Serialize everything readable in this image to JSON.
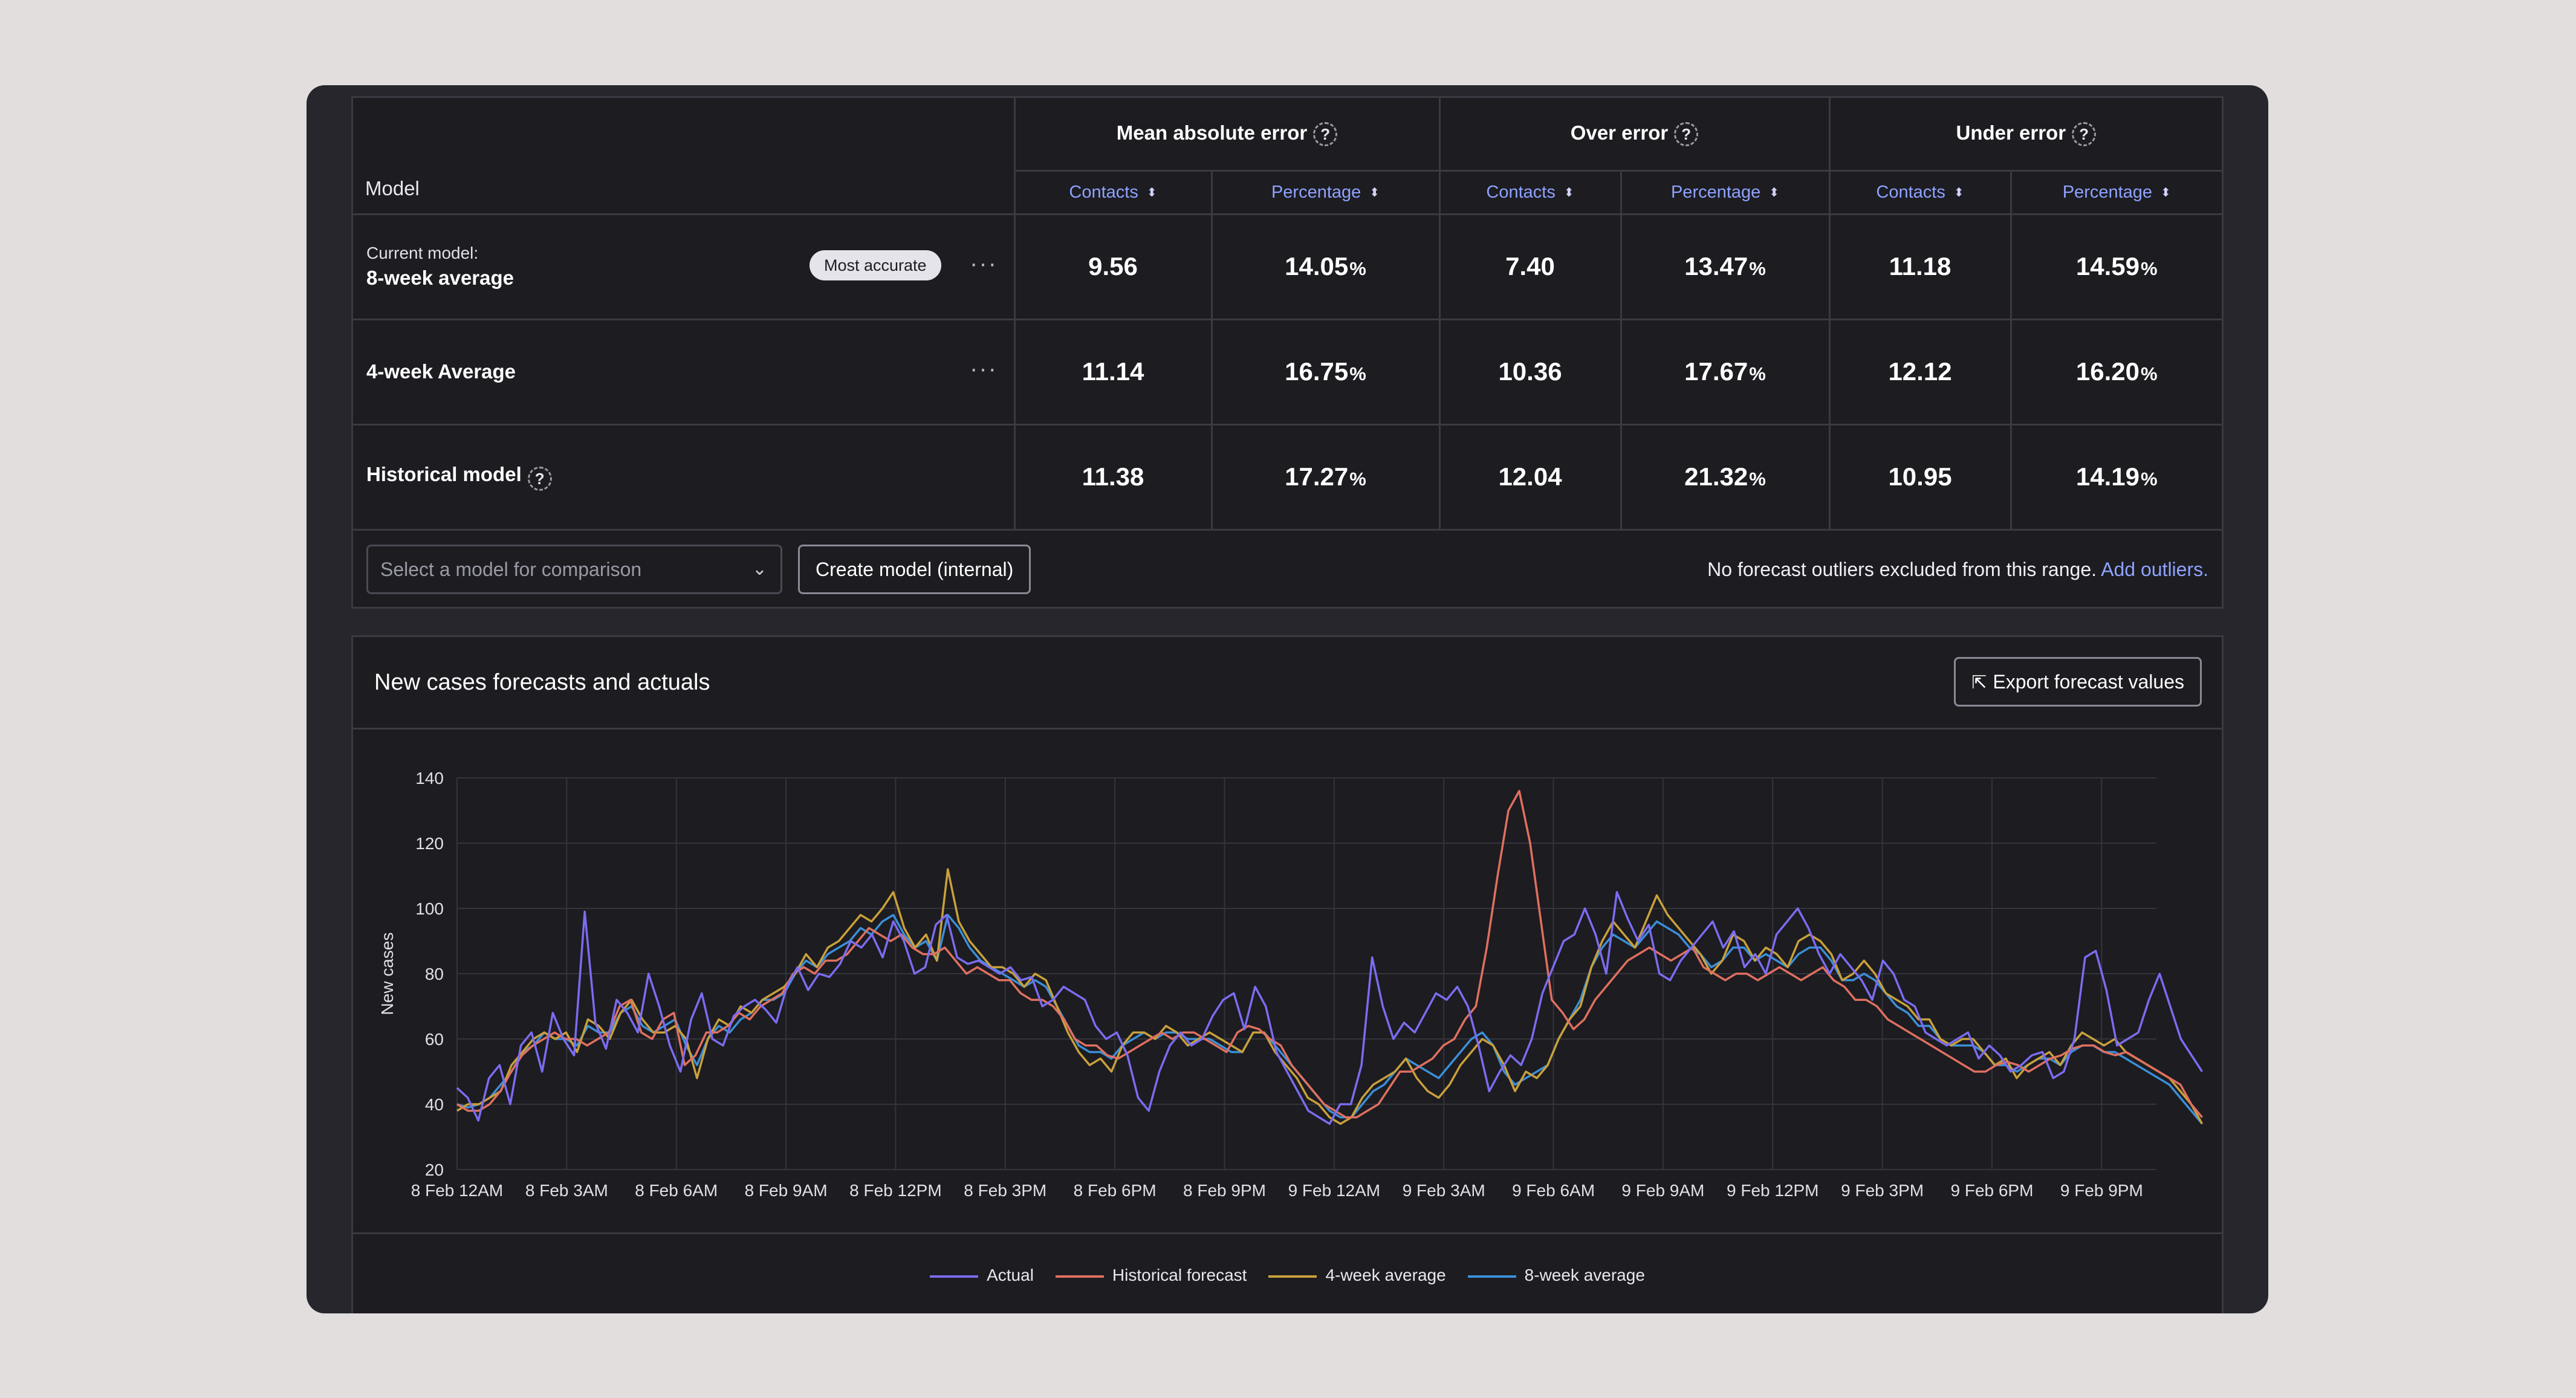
{
  "table": {
    "model_header": "Model",
    "groups": [
      {
        "label": "Mean absolute error",
        "help": "?"
      },
      {
        "label": "Over error",
        "help": "?"
      },
      {
        "label": "Under error",
        "help": "?"
      }
    ],
    "sub_headers": [
      "Contacts",
      "Percentage",
      "Contacts",
      "Percentage",
      "Contacts",
      "Percentage"
    ],
    "sort_glyph": "⬍",
    "rows": [
      {
        "prefix": "Current model:",
        "name": "8-week average",
        "badge": "Most accurate",
        "menu": "···",
        "values": [
          "9.56",
          "14.05",
          "7.40",
          "13.47",
          "11.18",
          "14.59"
        ]
      },
      {
        "prefix": "",
        "name": "4-week Average",
        "badge": "",
        "menu": "···",
        "values": [
          "11.14",
          "16.75",
          "10.36",
          "17.67",
          "12.12",
          "16.20"
        ]
      },
      {
        "prefix": "",
        "name": "Historical model",
        "badge": "",
        "menu": "",
        "help": "?",
        "values": [
          "11.38",
          "17.27",
          "12.04",
          "21.32",
          "10.95",
          "14.19"
        ]
      }
    ],
    "percent_sign": "%"
  },
  "controls": {
    "select_placeholder": "Select a model for comparison",
    "create_button": "Create model (internal)",
    "outlier_text": "No forecast outliers excluded from this range.",
    "outlier_link": "Add outliers."
  },
  "chart_card": {
    "title": "New cases forecasts and actuals",
    "export_button": "Export forecast values",
    "export_icon": "export-icon"
  },
  "chart_data": {
    "type": "line",
    "title": "",
    "ylabel": "New cases",
    "xlabel": "",
    "ylim": [
      20,
      140
    ],
    "yticks": [
      20,
      40,
      60,
      80,
      100,
      120,
      140
    ],
    "xticks": [
      "8 Feb 12AM",
      "8 Feb 3AM",
      "8 Feb 6AM",
      "8 Feb 9AM",
      "8 Feb 12PM",
      "8 Feb 3PM",
      "8 Feb 6PM",
      "8 Feb 9PM",
      "9 Feb 12AM",
      "9 Feb 3AM",
      "9 Feb 6AM",
      "9 Feb 9AM",
      "9 Feb 12PM",
      "9 Feb 3PM",
      "9 Feb 6PM",
      "9 Feb 9PM"
    ],
    "x_hours_start": 0,
    "x_hours_end": 47.75,
    "grid": true,
    "legend_position": "bottom",
    "series": [
      {
        "name": "Actual",
        "color": "#7b6cf0",
        "values": [
          45,
          42,
          35,
          48,
          52,
          40,
          58,
          62,
          50,
          68,
          60,
          55,
          99,
          65,
          57,
          72,
          68,
          62,
          80,
          70,
          58,
          50,
          66,
          74,
          60,
          58,
          67,
          70,
          72,
          69,
          65,
          76,
          82,
          75,
          80,
          79,
          83,
          90,
          88,
          92,
          85,
          96,
          90,
          80,
          82,
          95,
          98,
          85,
          83,
          84,
          82,
          80,
          82,
          78,
          79,
          70,
          72,
          76,
          74,
          72,
          64,
          60,
          62,
          55,
          42,
          38,
          50,
          58,
          62,
          58,
          60,
          67,
          72,
          74,
          63,
          76,
          70,
          56,
          50,
          44,
          38,
          36,
          34,
          40,
          40,
          52,
          85,
          70,
          60,
          65,
          62,
          68,
          74,
          72,
          76,
          70,
          58,
          44,
          50,
          55,
          52,
          60,
          74,
          82,
          90,
          92,
          100,
          92,
          80,
          105,
          97,
          90,
          95,
          80,
          78,
          84,
          88,
          92,
          96,
          88,
          93,
          82,
          86,
          80,
          92,
          96,
          100,
          94,
          86,
          80,
          86,
          82,
          78,
          72,
          84,
          80,
          72,
          70,
          62,
          60,
          58,
          60,
          62,
          54,
          58,
          55,
          50,
          52,
          55,
          56,
          48,
          50,
          60,
          85,
          87,
          75,
          58,
          60,
          62,
          72,
          80,
          70,
          60,
          55,
          50
        ]
      },
      {
        "name": "Historical forecast",
        "color": "#e0705f",
        "values": [
          40,
          38,
          38,
          40,
          44,
          50,
          55,
          58,
          60,
          62,
          60,
          60,
          58,
          60,
          62,
          70,
          72,
          62,
          60,
          66,
          68,
          52,
          55,
          62,
          62,
          64,
          68,
          66,
          70,
          72,
          74,
          80,
          82,
          80,
          84,
          84,
          86,
          90,
          94,
          92,
          90,
          92,
          88,
          86,
          86,
          88,
          84,
          80,
          82,
          80,
          78,
          78,
          74,
          72,
          72,
          70,
          66,
          60,
          58,
          58,
          55,
          54,
          56,
          58,
          60,
          62,
          60,
          62,
          62,
          60,
          58,
          56,
          62,
          64,
          63,
          60,
          58,
          52,
          48,
          44,
          40,
          38,
          36,
          36,
          38,
          40,
          45,
          50,
          50,
          52,
          54,
          58,
          60,
          66,
          70,
          88,
          110,
          130,
          136,
          120,
          96,
          72,
          68,
          63,
          66,
          72,
          76,
          80,
          84,
          86,
          88,
          86,
          84,
          86,
          88,
          82,
          80,
          78,
          80,
          80,
          78,
          80,
          82,
          80,
          78,
          80,
          82,
          78,
          76,
          72,
          72,
          70,
          66,
          64,
          62,
          60,
          58,
          56,
          54,
          52,
          50,
          50,
          52,
          53,
          52,
          50,
          52,
          54,
          55,
          57,
          58,
          58,
          56,
          55,
          56,
          54,
          52,
          50,
          48,
          46,
          40,
          36
        ]
      },
      {
        "name": "4-week average",
        "color": "#c9a03a",
        "values": [
          38,
          40,
          40,
          42,
          44,
          52,
          56,
          60,
          62,
          60,
          62,
          56,
          66,
          64,
          60,
          68,
          72,
          66,
          62,
          62,
          64,
          60,
          48,
          60,
          66,
          64,
          70,
          68,
          72,
          74,
          76,
          80,
          86,
          82,
          88,
          90,
          94,
          98,
          96,
          100,
          105,
          94,
          88,
          92,
          84,
          112,
          96,
          90,
          86,
          82,
          82,
          80,
          76,
          80,
          78,
          70,
          62,
          56,
          52,
          54,
          50,
          58,
          62,
          62,
          60,
          64,
          62,
          58,
          60,
          62,
          60,
          58,
          56,
          62,
          62,
          56,
          52,
          48,
          42,
          40,
          36,
          34,
          36,
          42,
          46,
          48,
          50,
          54,
          48,
          44,
          42,
          46,
          52,
          56,
          60,
          58,
          52,
          44,
          50,
          48,
          52,
          60,
          66,
          70,
          82,
          90,
          96,
          92,
          88,
          96,
          104,
          98,
          94,
          90,
          86,
          80,
          84,
          92,
          90,
          84,
          88,
          86,
          82,
          90,
          92,
          90,
          86,
          78,
          80,
          84,
          80,
          74,
          72,
          70,
          66,
          66,
          60,
          58,
          60,
          60,
          56,
          52,
          54,
          48,
          52,
          54,
          56,
          52,
          58,
          62,
          60,
          58,
          60,
          56,
          54,
          52,
          50,
          48,
          44,
          40,
          34
        ]
      },
      {
        "name": "8-week average",
        "color": "#3b8fd8",
        "values": [
          40,
          39,
          40,
          42,
          46,
          50,
          56,
          58,
          62,
          60,
          60,
          58,
          64,
          62,
          62,
          68,
          70,
          64,
          62,
          64,
          66,
          58,
          52,
          60,
          64,
          62,
          66,
          68,
          72,
          72,
          74,
          80,
          84,
          82,
          86,
          88,
          90,
          94,
          92,
          96,
          98,
          92,
          88,
          90,
          84,
          98,
          94,
          88,
          84,
          82,
          80,
          78,
          76,
          78,
          76,
          70,
          64,
          58,
          56,
          56,
          54,
          58,
          60,
          62,
          60,
          62,
          62,
          60,
          60,
          60,
          58,
          56,
          56,
          62,
          62,
          58,
          54,
          50,
          46,
          42,
          38,
          36,
          36,
          40,
          44,
          46,
          50,
          54,
          52,
          50,
          48,
          52,
          56,
          60,
          62,
          58,
          50,
          46,
          48,
          50,
          52,
          60,
          66,
          72,
          82,
          88,
          92,
          90,
          88,
          92,
          96,
          94,
          92,
          88,
          86,
          82,
          84,
          88,
          88,
          84,
          86,
          84,
          82,
          86,
          88,
          88,
          84,
          78,
          78,
          80,
          78,
          74,
          70,
          68,
          64,
          64,
          60,
          58,
          58,
          58,
          56,
          52,
          52,
          50,
          52,
          54,
          54,
          52,
          56,
          58,
          58,
          56,
          56,
          54,
          52,
          50,
          48,
          46,
          42,
          38,
          34
        ]
      }
    ]
  }
}
